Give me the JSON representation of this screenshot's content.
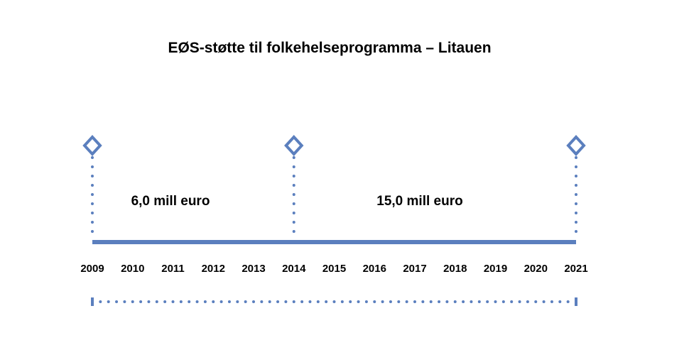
{
  "title": "EØS-støtte til folkehelseprogramma – Litauen",
  "accent_color": "#5b7fbe",
  "years": [
    "2009",
    "2010",
    "2011",
    "2012",
    "2013",
    "2014",
    "2015",
    "2016",
    "2017",
    "2018",
    "2019",
    "2020",
    "2021"
  ],
  "milestones": [
    "2009",
    "2014",
    "2021"
  ],
  "periods": [
    {
      "label": "6,0 mill euro",
      "from": "2009",
      "to": "2014"
    },
    {
      "label": "15,0 mill euro",
      "from": "2014",
      "to": "2021"
    }
  ],
  "markers": {
    "shape": "diamond-outline-icon"
  }
}
